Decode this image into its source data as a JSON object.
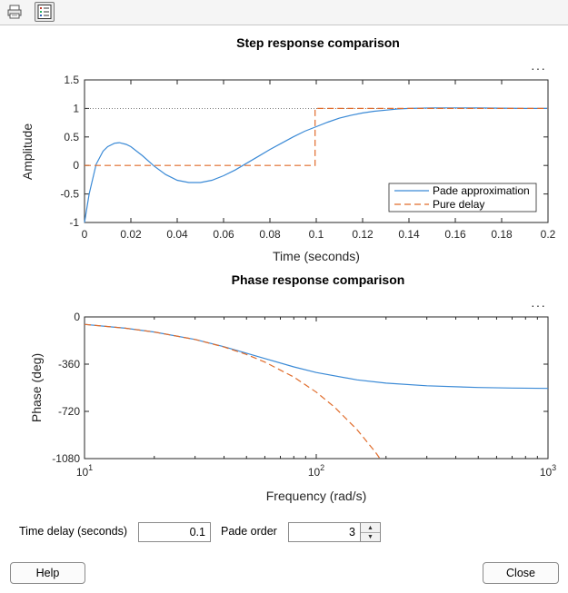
{
  "toolbar": {
    "print_icon": "printer-icon",
    "legend_icon": "legend-icon"
  },
  "colors": {
    "pade": "#3b8ad6",
    "delay": "#e06c2b",
    "axis": "#262626",
    "grid_ref": "#555555"
  },
  "step_plot": {
    "title": "Step response comparison",
    "more_label": "···",
    "xlabel": "Time (seconds)",
    "ylabel": "Amplitude",
    "xticks": [
      "0",
      "0.02",
      "0.04",
      "0.06",
      "0.08",
      "0.1",
      "0.12",
      "0.14",
      "0.16",
      "0.18",
      "0.2"
    ],
    "yticks": [
      "1.5",
      "1",
      "0.5",
      "0",
      "-0.5",
      "-1"
    ],
    "legend": [
      "Pade approximation",
      "Pure delay"
    ]
  },
  "phase_plot": {
    "title": "Phase response comparison",
    "more_label": "···",
    "xlabel": "Frequency (rad/s)",
    "ylabel": "Phase (deg)",
    "xticks": [
      "10",
      "10",
      "10"
    ],
    "xtick_exponents": [
      "1",
      "2",
      "3"
    ],
    "yticks": [
      "0",
      "-360",
      "-720",
      "-1080"
    ]
  },
  "controls": {
    "time_delay_label": "Time delay (seconds)",
    "time_delay_value": "0.1",
    "pade_order_label": "Pade order",
    "pade_order_value": "3",
    "help_label": "Help",
    "close_label": "Close"
  },
  "chart_data": [
    {
      "type": "line",
      "title": "Step response comparison",
      "xlabel": "Time (seconds)",
      "ylabel": "Amplitude",
      "xlim": [
        0,
        0.2
      ],
      "ylim": [
        -1,
        1.5
      ],
      "reference_line": {
        "y": 1,
        "style": "dotted"
      },
      "legend_position": "bottom-right",
      "series": [
        {
          "name": "Pade approximation",
          "x": [
            0,
            0.002,
            0.005,
            0.008,
            0.01,
            0.013,
            0.015,
            0.018,
            0.02,
            0.025,
            0.03,
            0.035,
            0.04,
            0.045,
            0.05,
            0.055,
            0.06,
            0.065,
            0.07,
            0.075,
            0.08,
            0.085,
            0.09,
            0.095,
            0.1,
            0.105,
            0.11,
            0.115,
            0.12,
            0.125,
            0.13,
            0.135,
            0.14,
            0.145,
            0.15,
            0.16,
            0.17,
            0.18,
            0.19,
            0.2
          ],
          "y": [
            -1,
            -0.5,
            0.02,
            0.25,
            0.33,
            0.39,
            0.4,
            0.37,
            0.33,
            0.17,
            -0.01,
            -0.16,
            -0.26,
            -0.3,
            -0.3,
            -0.26,
            -0.18,
            -0.08,
            0.04,
            0.16,
            0.28,
            0.39,
            0.5,
            0.6,
            0.68,
            0.76,
            0.83,
            0.88,
            0.92,
            0.95,
            0.97,
            0.99,
            1.0,
            1.005,
            1.01,
            1.01,
            1.008,
            1.004,
            1.0,
            1.0
          ]
        },
        {
          "name": "Pure delay",
          "x": [
            0,
            0.0995,
            0.0995,
            0.1,
            0.2
          ],
          "y": [
            0,
            0,
            1,
            1,
            1
          ]
        }
      ]
    },
    {
      "type": "line",
      "title": "Phase response comparison",
      "xlabel": "Frequency (rad/s)",
      "ylabel": "Phase (deg)",
      "xscale": "log",
      "xlim": [
        10,
        1000
      ],
      "ylim": [
        -1080,
        0
      ],
      "series": [
        {
          "name": "Pade approximation",
          "x": [
            10,
            15,
            20,
            30,
            40,
            50,
            60,
            80,
            100,
            150,
            200,
            300,
            500,
            700,
            1000
          ],
          "y": [
            -57,
            -86,
            -115,
            -172,
            -227,
            -276,
            -317,
            -381,
            -424,
            -480,
            -505,
            -525,
            -538,
            -542,
            -545
          ]
        },
        {
          "name": "Pure delay",
          "x": [
            10,
            15,
            20,
            30,
            40,
            50,
            60,
            80,
            100,
            120,
            150,
            180,
            200
          ],
          "y": [
            -57,
            -86,
            -115,
            -172,
            -229,
            -286,
            -344,
            -458,
            -573,
            -688,
            -859,
            -1031,
            -1146
          ]
        }
      ]
    }
  ]
}
